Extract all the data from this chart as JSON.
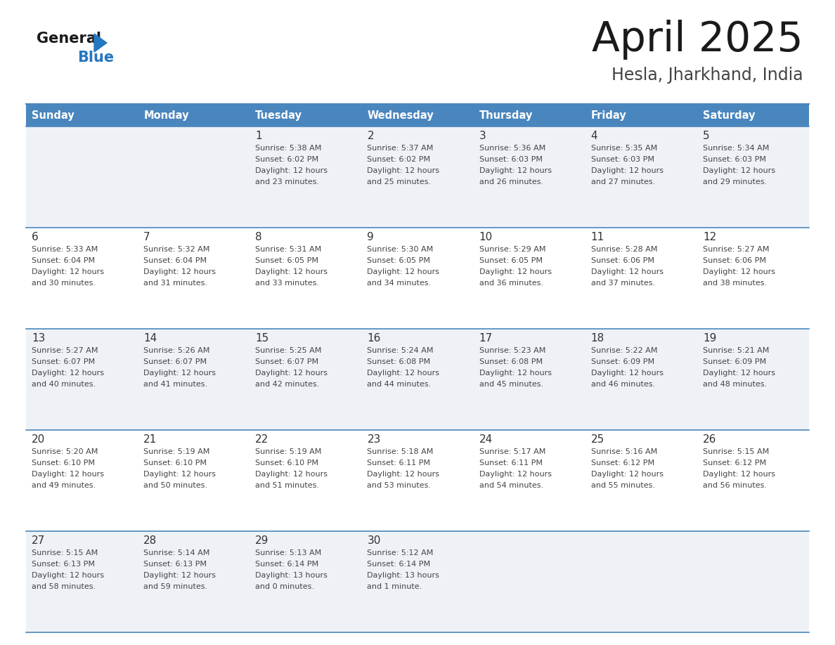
{
  "title": "April 2025",
  "subtitle": "Hesla, Jharkhand, India",
  "header_bg": "#4a86be",
  "header_text_color": "#ffffff",
  "day_names": [
    "Sunday",
    "Monday",
    "Tuesday",
    "Wednesday",
    "Thursday",
    "Friday",
    "Saturday"
  ],
  "row_bg_odd": "#eef2f7",
  "row_bg_even": "#ffffff",
  "cell_border_color": "#4a86be",
  "date_text_color": "#333333",
  "info_text_color": "#444444",
  "logo_black": "#1a1a1a",
  "logo_blue": "#2577c0",
  "title_color": "#1a1a1a",
  "subtitle_color": "#444444",
  "weeks": [
    {
      "days": [
        {
          "date": "",
          "sunrise": "",
          "sunset": "",
          "daylight": ""
        },
        {
          "date": "",
          "sunrise": "",
          "sunset": "",
          "daylight": ""
        },
        {
          "date": "1",
          "sunrise": "Sunrise: 5:38 AM",
          "sunset": "Sunset: 6:02 PM",
          "daylight": "Daylight: 12 hours\nand 23 minutes."
        },
        {
          "date": "2",
          "sunrise": "Sunrise: 5:37 AM",
          "sunset": "Sunset: 6:02 PM",
          "daylight": "Daylight: 12 hours\nand 25 minutes."
        },
        {
          "date": "3",
          "sunrise": "Sunrise: 5:36 AM",
          "sunset": "Sunset: 6:03 PM",
          "daylight": "Daylight: 12 hours\nand 26 minutes."
        },
        {
          "date": "4",
          "sunrise": "Sunrise: 5:35 AM",
          "sunset": "Sunset: 6:03 PM",
          "daylight": "Daylight: 12 hours\nand 27 minutes."
        },
        {
          "date": "5",
          "sunrise": "Sunrise: 5:34 AM",
          "sunset": "Sunset: 6:03 PM",
          "daylight": "Daylight: 12 hours\nand 29 minutes."
        }
      ]
    },
    {
      "days": [
        {
          "date": "6",
          "sunrise": "Sunrise: 5:33 AM",
          "sunset": "Sunset: 6:04 PM",
          "daylight": "Daylight: 12 hours\nand 30 minutes."
        },
        {
          "date": "7",
          "sunrise": "Sunrise: 5:32 AM",
          "sunset": "Sunset: 6:04 PM",
          "daylight": "Daylight: 12 hours\nand 31 minutes."
        },
        {
          "date": "8",
          "sunrise": "Sunrise: 5:31 AM",
          "sunset": "Sunset: 6:05 PM",
          "daylight": "Daylight: 12 hours\nand 33 minutes."
        },
        {
          "date": "9",
          "sunrise": "Sunrise: 5:30 AM",
          "sunset": "Sunset: 6:05 PM",
          "daylight": "Daylight: 12 hours\nand 34 minutes."
        },
        {
          "date": "10",
          "sunrise": "Sunrise: 5:29 AM",
          "sunset": "Sunset: 6:05 PM",
          "daylight": "Daylight: 12 hours\nand 36 minutes."
        },
        {
          "date": "11",
          "sunrise": "Sunrise: 5:28 AM",
          "sunset": "Sunset: 6:06 PM",
          "daylight": "Daylight: 12 hours\nand 37 minutes."
        },
        {
          "date": "12",
          "sunrise": "Sunrise: 5:27 AM",
          "sunset": "Sunset: 6:06 PM",
          "daylight": "Daylight: 12 hours\nand 38 minutes."
        }
      ]
    },
    {
      "days": [
        {
          "date": "13",
          "sunrise": "Sunrise: 5:27 AM",
          "sunset": "Sunset: 6:07 PM",
          "daylight": "Daylight: 12 hours\nand 40 minutes."
        },
        {
          "date": "14",
          "sunrise": "Sunrise: 5:26 AM",
          "sunset": "Sunset: 6:07 PM",
          "daylight": "Daylight: 12 hours\nand 41 minutes."
        },
        {
          "date": "15",
          "sunrise": "Sunrise: 5:25 AM",
          "sunset": "Sunset: 6:07 PM",
          "daylight": "Daylight: 12 hours\nand 42 minutes."
        },
        {
          "date": "16",
          "sunrise": "Sunrise: 5:24 AM",
          "sunset": "Sunset: 6:08 PM",
          "daylight": "Daylight: 12 hours\nand 44 minutes."
        },
        {
          "date": "17",
          "sunrise": "Sunrise: 5:23 AM",
          "sunset": "Sunset: 6:08 PM",
          "daylight": "Daylight: 12 hours\nand 45 minutes."
        },
        {
          "date": "18",
          "sunrise": "Sunrise: 5:22 AM",
          "sunset": "Sunset: 6:09 PM",
          "daylight": "Daylight: 12 hours\nand 46 minutes."
        },
        {
          "date": "19",
          "sunrise": "Sunrise: 5:21 AM",
          "sunset": "Sunset: 6:09 PM",
          "daylight": "Daylight: 12 hours\nand 48 minutes."
        }
      ]
    },
    {
      "days": [
        {
          "date": "20",
          "sunrise": "Sunrise: 5:20 AM",
          "sunset": "Sunset: 6:10 PM",
          "daylight": "Daylight: 12 hours\nand 49 minutes."
        },
        {
          "date": "21",
          "sunrise": "Sunrise: 5:19 AM",
          "sunset": "Sunset: 6:10 PM",
          "daylight": "Daylight: 12 hours\nand 50 minutes."
        },
        {
          "date": "22",
          "sunrise": "Sunrise: 5:19 AM",
          "sunset": "Sunset: 6:10 PM",
          "daylight": "Daylight: 12 hours\nand 51 minutes."
        },
        {
          "date": "23",
          "sunrise": "Sunrise: 5:18 AM",
          "sunset": "Sunset: 6:11 PM",
          "daylight": "Daylight: 12 hours\nand 53 minutes."
        },
        {
          "date": "24",
          "sunrise": "Sunrise: 5:17 AM",
          "sunset": "Sunset: 6:11 PM",
          "daylight": "Daylight: 12 hours\nand 54 minutes."
        },
        {
          "date": "25",
          "sunrise": "Sunrise: 5:16 AM",
          "sunset": "Sunset: 6:12 PM",
          "daylight": "Daylight: 12 hours\nand 55 minutes."
        },
        {
          "date": "26",
          "sunrise": "Sunrise: 5:15 AM",
          "sunset": "Sunset: 6:12 PM",
          "daylight": "Daylight: 12 hours\nand 56 minutes."
        }
      ]
    },
    {
      "days": [
        {
          "date": "27",
          "sunrise": "Sunrise: 5:15 AM",
          "sunset": "Sunset: 6:13 PM",
          "daylight": "Daylight: 12 hours\nand 58 minutes."
        },
        {
          "date": "28",
          "sunrise": "Sunrise: 5:14 AM",
          "sunset": "Sunset: 6:13 PM",
          "daylight": "Daylight: 12 hours\nand 59 minutes."
        },
        {
          "date": "29",
          "sunrise": "Sunrise: 5:13 AM",
          "sunset": "Sunset: 6:14 PM",
          "daylight": "Daylight: 13 hours\nand 0 minutes."
        },
        {
          "date": "30",
          "sunrise": "Sunrise: 5:12 AM",
          "sunset": "Sunset: 6:14 PM",
          "daylight": "Daylight: 13 hours\nand 1 minute."
        },
        {
          "date": "",
          "sunrise": "",
          "sunset": "",
          "daylight": ""
        },
        {
          "date": "",
          "sunrise": "",
          "sunset": "",
          "daylight": ""
        },
        {
          "date": "",
          "sunrise": "",
          "sunset": "",
          "daylight": ""
        }
      ]
    }
  ]
}
